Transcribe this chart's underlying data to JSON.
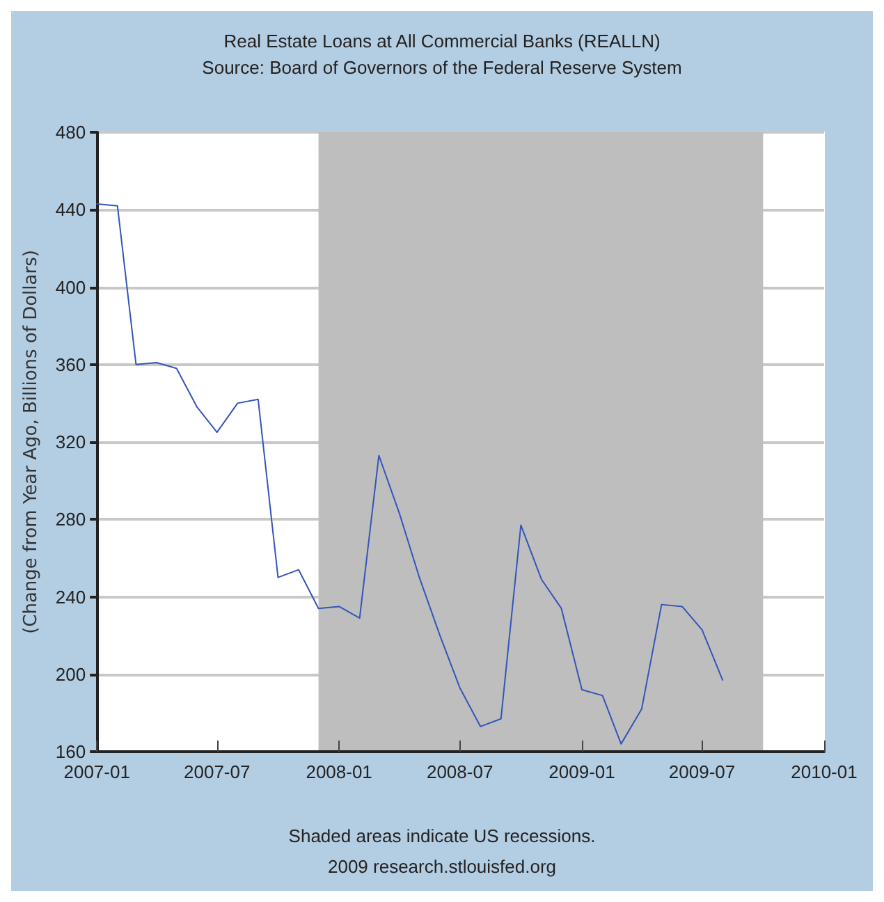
{
  "chart_data": {
    "type": "line",
    "title": "Real Estate Loans at All Commercial Banks (REALLN)",
    "subtitle": "Source: Board of Governors of the Federal Reserve System",
    "ylabel": "(Change from Year Ago, Billions of Dollars)",
    "x": [
      "2007-01",
      "2007-02",
      "2007-03",
      "2007-04",
      "2007-05",
      "2007-06",
      "2007-07",
      "2007-08",
      "2007-09",
      "2007-10",
      "2007-11",
      "2007-12",
      "2008-01",
      "2008-02",
      "2008-03",
      "2008-04",
      "2008-05",
      "2008-06",
      "2008-07",
      "2008-08",
      "2008-09",
      "2008-10",
      "2008-11",
      "2008-12",
      "2009-01",
      "2009-02",
      "2009-03",
      "2009-04",
      "2009-05",
      "2009-06",
      "2009-07",
      "2009-08"
    ],
    "series": [
      {
        "color": "#3355bb",
        "values": [
          443,
          442,
          360,
          361,
          358,
          338,
          325,
          340,
          342,
          250,
          254,
          234,
          235,
          229,
          313,
          283,
          250,
          220,
          193,
          173,
          177,
          277,
          249,
          234,
          192,
          189,
          164,
          182,
          236,
          235,
          223,
          197
        ]
      }
    ],
    "xlim": [
      "2007-01",
      "2010-01"
    ],
    "xticks": [
      "2007-01",
      "2007-07",
      "2008-01",
      "2008-07",
      "2009-01",
      "2009-07",
      "2010-01"
    ],
    "ylim": [
      160,
      480
    ],
    "yticks": [
      160,
      200,
      240,
      280,
      320,
      360,
      400,
      440,
      480
    ],
    "bands": [
      {
        "axis": "x",
        "from": "2007-12",
        "to": "2009-10",
        "color": "#bebebe"
      }
    ],
    "grid": "y",
    "marker": "none",
    "line_style": "solid",
    "annotations": [
      "Shaded areas indicate US recessions.",
      "2009 research.stlouisfed.org"
    ]
  }
}
